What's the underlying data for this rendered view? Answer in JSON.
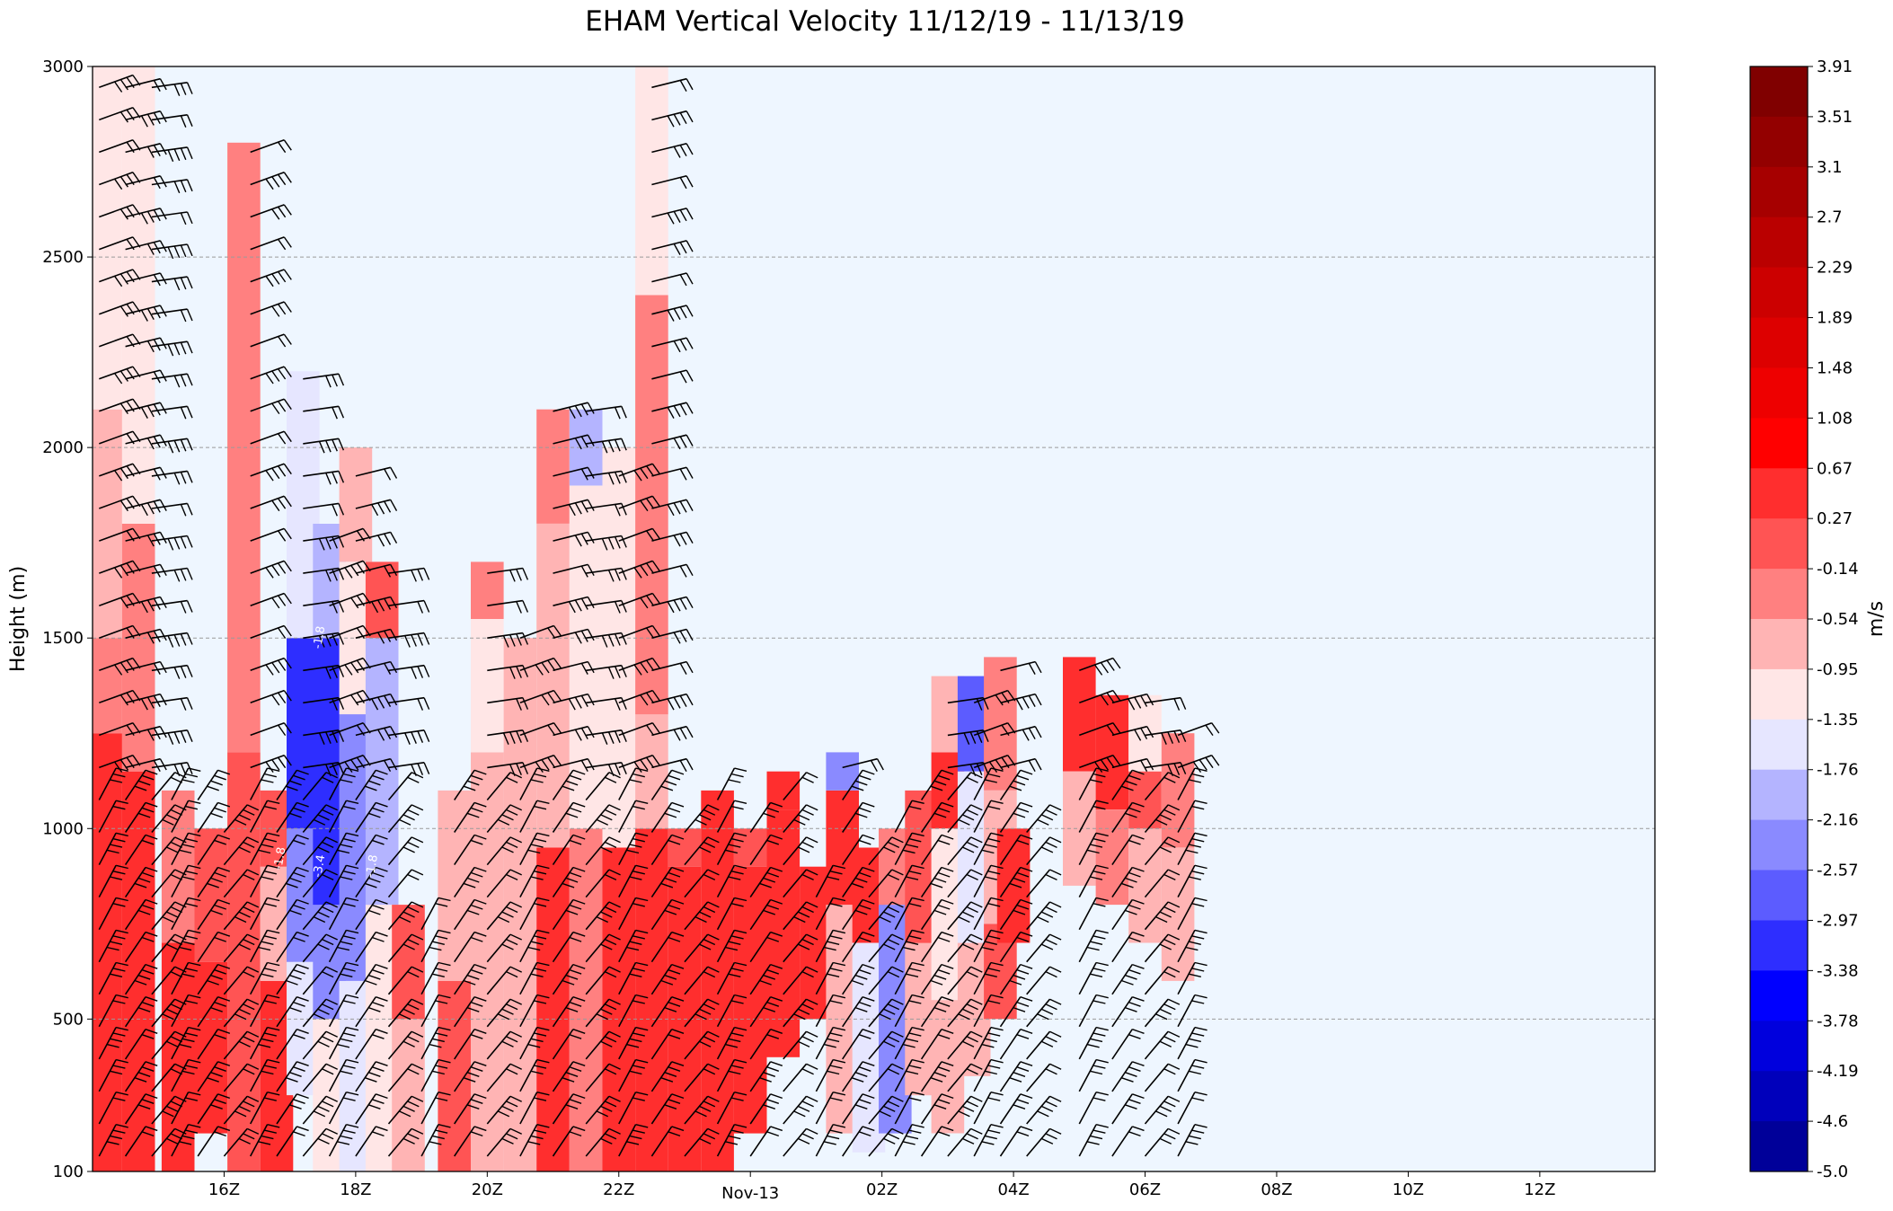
{
  "chart_data": {
    "type": "heatmap",
    "title": "EHAM Vertical Velocity 11/12/19 - 11/13/19",
    "ylabel": "Height (m)",
    "xlabel": "",
    "ylim": [
      100,
      3000
    ],
    "xlim_hours": [
      12.0,
      35.75
    ],
    "yticks": [
      100,
      500,
      1000,
      1500,
      2000,
      2500,
      3000
    ],
    "xticks": [
      {
        "hour": 14,
        "label": "16Z"
      },
      {
        "hour": 16,
        "label": "18Z"
      },
      {
        "hour": 18,
        "label": "20Z"
      },
      {
        "hour": 20,
        "label": "22Z"
      },
      {
        "hour": 22,
        "label": "Nov-13"
      },
      {
        "hour": 24,
        "label": "02Z"
      },
      {
        "hour": 26,
        "label": "04Z"
      },
      {
        "hour": 28,
        "label": "06Z"
      },
      {
        "hour": 30,
        "label": "08Z"
      },
      {
        "hour": 32,
        "label": "10Z"
      },
      {
        "hour": 34,
        "label": "12Z"
      }
    ],
    "grid": "horizontal dashed",
    "colorbar": {
      "label": "m/s",
      "ticks": [
        "3.91",
        "3.51",
        "3.1",
        "2.7",
        "2.29",
        "1.89",
        "1.48",
        "1.08",
        "0.67",
        "0.27",
        "-0.14",
        "-0.54",
        "-0.95",
        "-1.35",
        "-1.76",
        "-2.16",
        "-2.57",
        "-2.97",
        "-3.38",
        "-3.78",
        "-4.19",
        "-4.6",
        "-5.0"
      ],
      "colors": [
        "#800000",
        "#930000",
        "#a60000",
        "#ba0000",
        "#cc0000",
        "#dd0000",
        "#ee0000",
        "#ff0000",
        "#ff2e2e",
        "#ff5454",
        "#ff8080",
        "#ffb4b4",
        "#ffe6e6",
        "#e6e6ff",
        "#b4b4ff",
        "#8a8aff",
        "#5c5cff",
        "#2e2eff",
        "#0000ff",
        "#0000dd",
        "#0000bb",
        "#000099",
        "#000077",
        "#000050"
      ]
    },
    "columns": [
      {
        "t": 12.2,
        "segs": [
          [
            100,
            1250,
            0.4
          ],
          [
            1250,
            1500,
            -0.3
          ],
          [
            1500,
            2100,
            -0.7
          ],
          [
            2100,
            3000,
            -1.1
          ]
        ]
      },
      {
        "t": 12.7,
        "segs": [
          [
            100,
            1150,
            0.5
          ],
          [
            1150,
            1800,
            -0.3
          ],
          [
            1800,
            3000,
            -1.0
          ]
        ]
      },
      {
        "t": 13.3,
        "segs": [
          [
            100,
            700,
            0.4
          ],
          [
            700,
            1100,
            -0.2
          ]
        ]
      },
      {
        "t": 13.8,
        "segs": [
          [
            200,
            650,
            0.5
          ],
          [
            650,
            1000,
            -0.1
          ]
        ]
      },
      {
        "t": 14.3,
        "segs": [
          [
            100,
            1200,
            0.2
          ],
          [
            1200,
            2800,
            -0.2
          ]
        ]
      },
      {
        "t": 14.8,
        "segs": [
          [
            100,
            600,
            0.3
          ],
          [
            600,
            900,
            -0.8
          ],
          [
            900,
            1100,
            0.1
          ]
        ]
      },
      {
        "t": 15.2,
        "segs": [
          [
            300,
            650,
            -1.4
          ],
          [
            650,
            1000,
            -2.2
          ],
          [
            1000,
            1500,
            -3.1
          ],
          [
            1500,
            2200,
            -1.4
          ]
        ]
      },
      {
        "t": 15.6,
        "segs": [
          [
            100,
            500,
            -1.2
          ],
          [
            500,
            800,
            -2.5
          ],
          [
            800,
            1500,
            -3.3
          ],
          [
            1500,
            1800,
            -2.0
          ]
        ]
      },
      {
        "t": 16.0,
        "segs": [
          [
            100,
            600,
            -1.6
          ],
          [
            600,
            1300,
            -2.2
          ],
          [
            1300,
            1700,
            -1.3
          ],
          [
            1700,
            2000,
            -0.7
          ]
        ]
      },
      {
        "t": 16.4,
        "segs": [
          [
            100,
            800,
            -1.0
          ],
          [
            800,
            1500,
            -1.8
          ],
          [
            1500,
            1700,
            0.1
          ]
        ]
      },
      {
        "t": 16.8,
        "segs": [
          [
            100,
            500,
            -0.8
          ],
          [
            500,
            800,
            0.2
          ]
        ]
      },
      {
        "t": 17.5,
        "segs": [
          [
            100,
            600,
            0.2
          ],
          [
            600,
            1100,
            -0.8
          ]
        ]
      },
      {
        "t": 18.0,
        "segs": [
          [
            100,
            1200,
            -0.9
          ],
          [
            1200,
            1550,
            -1.1
          ],
          [
            1550,
            1700,
            -0.3
          ]
        ]
      },
      {
        "t": 18.5,
        "segs": [
          [
            100,
            1300,
            -0.7
          ],
          [
            1300,
            1500,
            -0.9
          ]
        ]
      },
      {
        "t": 19.0,
        "segs": [
          [
            100,
            950,
            0.3
          ],
          [
            950,
            1800,
            -0.8
          ],
          [
            1800,
            2100,
            -0.5
          ]
        ]
      },
      {
        "t": 19.5,
        "segs": [
          [
            100,
            1000,
            -0.4
          ],
          [
            1000,
            1900,
            -1.0
          ],
          [
            1900,
            2100,
            -1.8
          ]
        ]
      },
      {
        "t": 20.0,
        "segs": [
          [
            100,
            950,
            0.3
          ],
          [
            950,
            1500,
            -1.2
          ],
          [
            1500,
            2000,
            -1.0
          ]
        ]
      },
      {
        "t": 20.5,
        "segs": [
          [
            100,
            1000,
            0.4
          ],
          [
            1000,
            1300,
            -0.7
          ],
          [
            1300,
            2400,
            -0.4
          ],
          [
            2400,
            3000,
            -1.3
          ]
        ]
      },
      {
        "t": 21.0,
        "segs": [
          [
            100,
            900,
            0.5
          ],
          [
            900,
            1000,
            0.1
          ]
        ]
      },
      {
        "t": 21.5,
        "segs": [
          [
            100,
            1000,
            0.4
          ],
          [
            1000,
            1100,
            0.6
          ]
        ]
      },
      {
        "t": 22.0,
        "segs": [
          [
            200,
            900,
            0.5
          ],
          [
            900,
            1000,
            0.1
          ]
        ]
      },
      {
        "t": 22.5,
        "segs": [
          [
            400,
            1050,
            0.6
          ],
          [
            1050,
            1150,
            0.3
          ]
        ]
      },
      {
        "t": 23.0,
        "segs": [
          [
            500,
            900,
            0.3
          ]
        ]
      },
      {
        "t": 23.4,
        "segs": [
          [
            200,
            800,
            -0.6
          ],
          [
            800,
            1100,
            0.4
          ],
          [
            1100,
            1200,
            -2.5
          ]
        ]
      },
      {
        "t": 23.8,
        "segs": [
          [
            150,
            700,
            -1.6
          ],
          [
            700,
            950,
            0.3
          ]
        ]
      },
      {
        "t": 24.2,
        "segs": [
          [
            200,
            800,
            -2.4
          ],
          [
            800,
            1000,
            -0.5
          ]
        ]
      },
      {
        "t": 24.6,
        "segs": [
          [
            300,
            700,
            -0.6
          ],
          [
            700,
            1100,
            0.2
          ]
        ]
      },
      {
        "t": 25.0,
        "segs": [
          [
            200,
            550,
            -0.8
          ],
          [
            550,
            1000,
            -1.1
          ],
          [
            1000,
            1200,
            0.3
          ],
          [
            1200,
            1400,
            -0.6
          ]
        ]
      },
      {
        "t": 25.4,
        "segs": [
          [
            350,
            700,
            -0.8
          ],
          [
            700,
            1150,
            -1.5
          ],
          [
            1150,
            1400,
            -2.7
          ]
        ]
      },
      {
        "t": 25.8,
        "segs": [
          [
            500,
            750,
            0.2
          ],
          [
            750,
            1100,
            -0.7
          ],
          [
            1100,
            1450,
            -0.3
          ]
        ]
      },
      {
        "t": 26.0,
        "segs": [
          [
            700,
            1000,
            0.4
          ]
        ]
      },
      {
        "t": 27.0,
        "segs": [
          [
            850,
            1150,
            -0.7
          ],
          [
            1150,
            1450,
            0.3
          ]
        ]
      },
      {
        "t": 27.5,
        "segs": [
          [
            800,
            1050,
            -0.2
          ],
          [
            1050,
            1350,
            0.4
          ]
        ]
      },
      {
        "t": 28.0,
        "segs": [
          [
            700,
            1000,
            -0.7
          ],
          [
            1000,
            1150,
            0.1
          ],
          [
            1150,
            1350,
            -1.2
          ]
        ]
      },
      {
        "t": 28.5,
        "segs": [
          [
            600,
            950,
            -0.6
          ],
          [
            950,
            1250,
            -0.2
          ]
        ]
      }
    ],
    "barb_columns_hours": [
      12.1,
      12.5,
      12.9,
      13.2,
      13.6,
      14.0,
      14.4,
      14.8,
      15.2,
      15.6,
      16.0,
      16.5,
      17.0,
      17.5,
      18.0,
      18.5,
      19.0,
      19.5,
      20.0,
      20.5,
      21.0,
      21.5,
      22.0,
      22.5,
      23.0,
      23.4,
      23.8,
      24.2,
      24.6,
      25.0,
      25.4,
      25.8,
      26.2,
      27.0,
      27.5,
      28.0,
      28.5
    ],
    "contour_labels": [
      {
        "t": 15.5,
        "h": 1500,
        "text": "-1.8"
      },
      {
        "t": 15.5,
        "h": 900,
        "text": "-3.4"
      },
      {
        "t": 16.3,
        "h": 900,
        "text": "-1.8"
      },
      {
        "t": 14.9,
        "h": 920,
        "text": "-1.8"
      }
    ]
  }
}
